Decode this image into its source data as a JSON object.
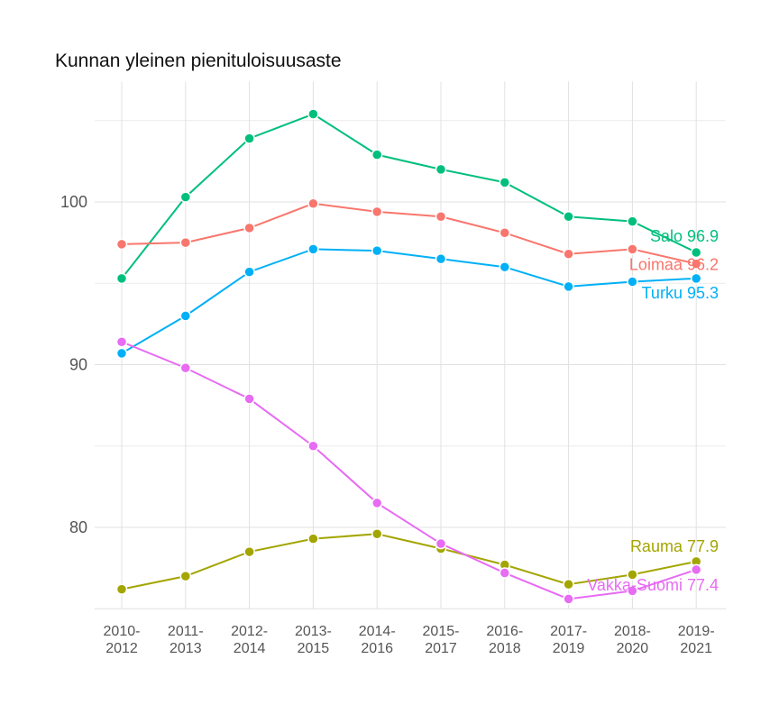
{
  "chart_data": {
    "type": "line",
    "title": "Kunnan yleinen pienituloisuusaste",
    "xlabel": "",
    "ylabel": "",
    "categories": [
      "2010-\n2012",
      "2011-\n2013",
      "2012-\n2014",
      "2013-\n2015",
      "2014-\n2016",
      "2015-\n2017",
      "2016-\n2018",
      "2017-\n2019",
      "2018-\n2020",
      "2019-\n2021"
    ],
    "y_ticks": [
      80,
      90,
      100
    ],
    "ylim": [
      75,
      107.4
    ],
    "grid": true,
    "legend": "none (direct labels at line ends)",
    "series": [
      {
        "name": "Salo",
        "color": "#00BF7D",
        "end_label": "Salo 96.9",
        "values": [
          95.3,
          100.3,
          103.9,
          105.4,
          102.9,
          102.0,
          101.2,
          99.1,
          98.8,
          96.9
        ]
      },
      {
        "name": "Loimaa",
        "color": "#F8766D",
        "end_label": "Loimaa 96.2",
        "values": [
          97.4,
          97.5,
          98.4,
          99.9,
          99.4,
          99.1,
          98.1,
          96.8,
          97.1,
          96.2
        ]
      },
      {
        "name": "Turku",
        "color": "#00B0F6",
        "end_label": "Turku 95.3",
        "values": [
          90.7,
          93.0,
          95.7,
          97.1,
          97.0,
          96.5,
          96.0,
          94.8,
          95.1,
          95.3
        ]
      },
      {
        "name": "Rauma",
        "color": "#A3A500",
        "end_label": "Rauma 77.9",
        "values": [
          76.2,
          77.0,
          78.5,
          79.3,
          79.6,
          78.7,
          77.7,
          76.5,
          77.1,
          77.9
        ]
      },
      {
        "name": "Vakka-Suomi",
        "color": "#E76BF3",
        "end_label": "Vakka-Suomi 77.4",
        "values": [
          91.4,
          89.8,
          87.9,
          85.0,
          81.5,
          79.0,
          77.2,
          75.6,
          76.1,
          77.4
        ]
      }
    ]
  }
}
